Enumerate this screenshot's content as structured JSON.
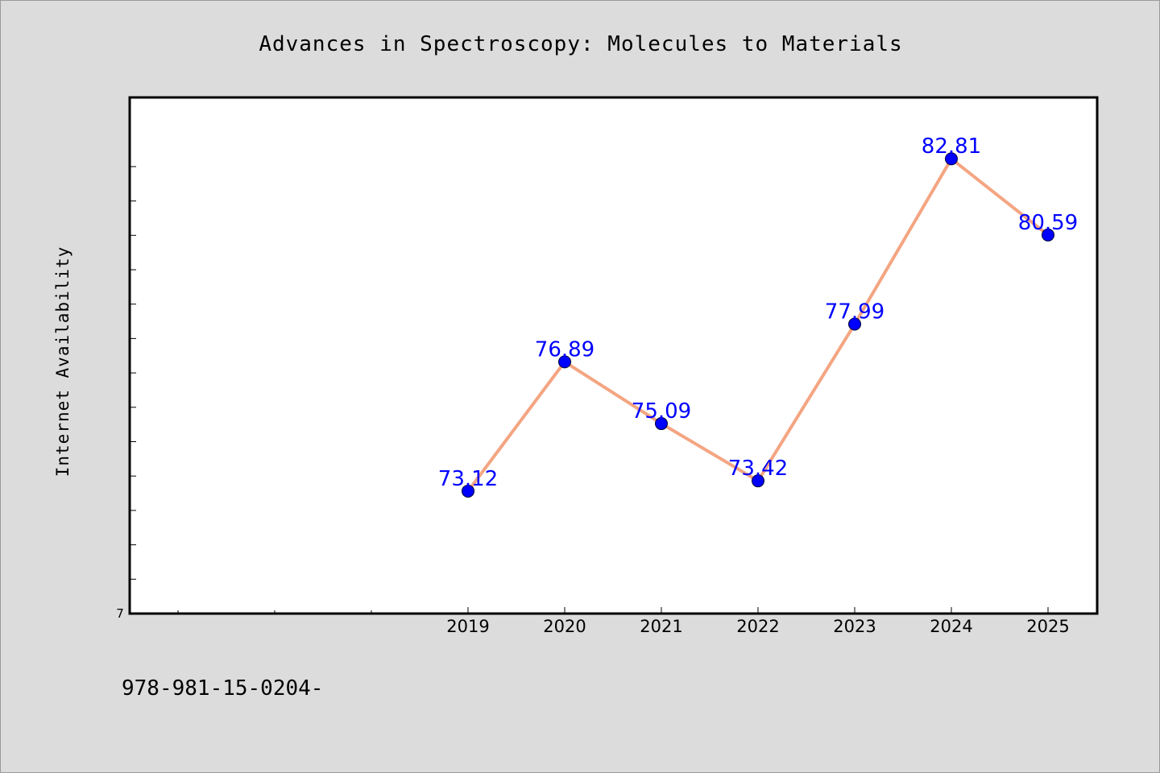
{
  "chart_data": {
    "type": "line",
    "title": "Advances in Spectroscopy: Molecules to Materials",
    "xlabel": "",
    "ylabel": "Internet Availability",
    "categories": [
      "2019",
      "2020",
      "2021",
      "2022",
      "2023",
      "2024",
      "2025"
    ],
    "series": [
      {
        "values": [
          73.12,
          76.89,
          75.09,
          73.42,
          77.99,
          82.81,
          80.59
        ],
        "labels": [
          "73.12",
          "76.89",
          "75.09",
          "73.42",
          "77.99",
          "82.81",
          "80.59"
        ]
      }
    ],
    "x_axis_start": 2015.5,
    "ylim": [
      69.55,
      84.6
    ],
    "y_tick_labels": [
      "7"
    ],
    "legend": "none",
    "grid": false,
    "line_color": "#f4a582",
    "marker_color": "#0000ff",
    "label_color": "#0000ff"
  },
  "footer": {
    "text": "978-981-15-0204-"
  }
}
